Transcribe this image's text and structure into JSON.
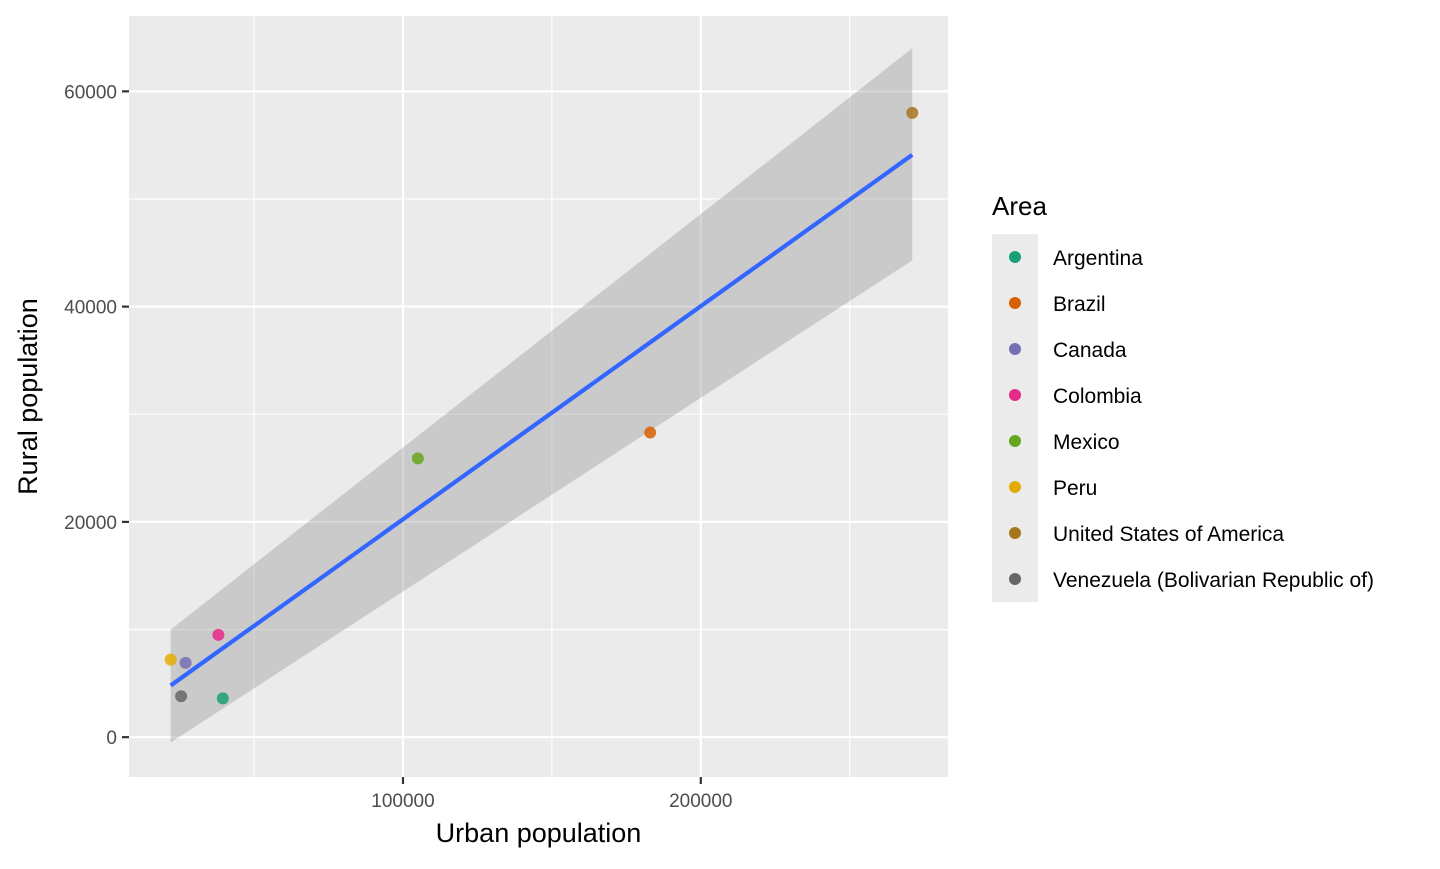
{
  "chart_data": {
    "type": "scatter",
    "title": "",
    "xlabel": "Urban population",
    "ylabel": "Rural population",
    "xlim": [
      8000,
      283000
    ],
    "ylim": [
      -3700,
      67000
    ],
    "x_ticks": [
      100000,
      200000
    ],
    "x_tick_labels": [
      "100000",
      "200000"
    ],
    "x_minor_ticks": [
      50000,
      150000,
      250000
    ],
    "y_ticks": [
      0,
      20000,
      40000,
      60000
    ],
    "y_tick_labels": [
      "0",
      "20000",
      "40000",
      "60000"
    ],
    "y_minor_ticks": [
      10000,
      30000,
      50000
    ],
    "grid": true,
    "panel_background": "#ebebeb",
    "legend": {
      "title": "Area",
      "position": "right"
    },
    "series": [
      {
        "name": "Argentina",
        "color": "#1b9e77",
        "x": [
          39500
        ],
        "y": [
          3600
        ]
      },
      {
        "name": "Brazil",
        "color": "#d95f02",
        "x": [
          183000
        ],
        "y": [
          28300
        ]
      },
      {
        "name": "Canada",
        "color": "#7570b3",
        "x": [
          27000
        ],
        "y": [
          6900
        ]
      },
      {
        "name": "Colombia",
        "color": "#e7298a",
        "x": [
          38000
        ],
        "y": [
          9500
        ]
      },
      {
        "name": "Mexico",
        "color": "#66a61e",
        "x": [
          105000
        ],
        "y": [
          25900
        ]
      },
      {
        "name": "Peru",
        "color": "#e6ab02",
        "x": [
          22000
        ],
        "y": [
          7200
        ]
      },
      {
        "name": "United States of America",
        "color": "#a6761d",
        "x": [
          271000
        ],
        "y": [
          58000
        ]
      },
      {
        "name": "Venezuela (Bolivarian Republic of)",
        "color": "#666666",
        "x": [
          25500
        ],
        "y": [
          3800
        ]
      }
    ],
    "fit_line": {
      "color": "#3366ff",
      "x": [
        22000,
        271000
      ],
      "y": [
        4800,
        54100
      ]
    },
    "confidence_band": {
      "color": "#999999",
      "x": [
        22000,
        271000
      ],
      "upper": [
        10000,
        64000
      ],
      "lower": [
        -500,
        44300
      ]
    }
  }
}
